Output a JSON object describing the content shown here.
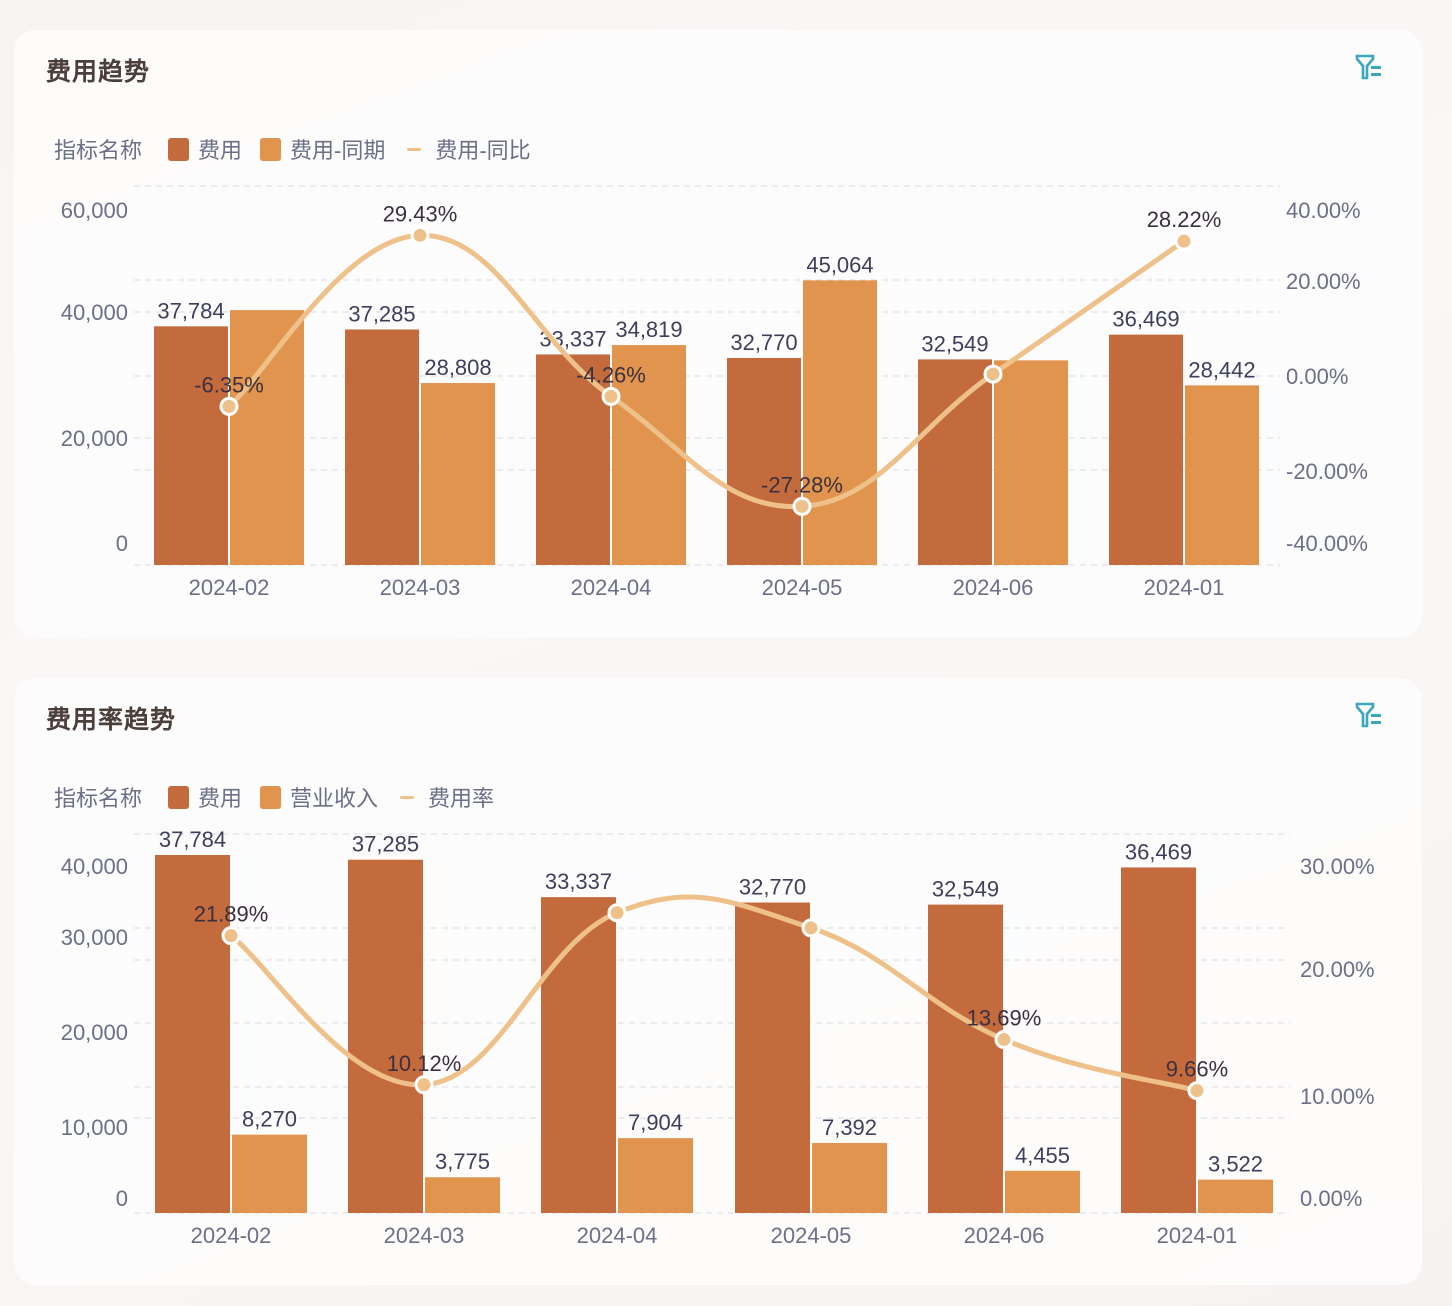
{
  "colors": {
    "expense": "#c46b3e",
    "secondary": "#e0944d",
    "line": "#eec18a",
    "filter_icon": "#3aa7bd",
    "title": "#4a3f3b",
    "axis_text": "#6b6f88",
    "grid": "#dadbe4"
  },
  "cards": [
    {
      "title": "费用趋势",
      "filter_icon": "filter-list-icon",
      "legend": {
        "title": "指标名称",
        "items": [
          {
            "label": "费用",
            "type": "bar"
          },
          {
            "label": "费用-同期",
            "type": "bar"
          },
          {
            "label": "费用-同比",
            "type": "line"
          }
        ]
      },
      "left_ticks": [
        "60,000",
        "40,000",
        "20,000",
        "0"
      ],
      "right_ticks": [
        "40.00%",
        "20.00%",
        "0.00%",
        "-20.00%",
        "-40.00%"
      ],
      "categories": [
        "2024-02",
        "2024-03",
        "2024-04",
        "2024-05",
        "2024-06",
        "2024-01"
      ]
    },
    {
      "title": "费用率趋势",
      "filter_icon": "filter-list-icon",
      "legend": {
        "title": "指标名称",
        "items": [
          {
            "label": "费用",
            "type": "bar"
          },
          {
            "label": "营业收入",
            "type": "bar"
          },
          {
            "label": "费用率",
            "type": "line"
          }
        ]
      },
      "left_ticks": [
        "40,000",
        "30,000",
        "20,000",
        "10,000",
        "0"
      ],
      "right_ticks": [
        "30.00%",
        "20.00%",
        "10.00%",
        "0.00%"
      ],
      "categories": [
        "2024-02",
        "2024-03",
        "2024-04",
        "2024-05",
        "2024-06",
        "2024-01"
      ]
    }
  ],
  "chart_data": [
    {
      "type": "bar",
      "title": "费用趋势",
      "categories": [
        "2024-02",
        "2024-03",
        "2024-04",
        "2024-05",
        "2024-06",
        "2024-01"
      ],
      "series": [
        {
          "name": "费用",
          "type": "bar",
          "axis": "left",
          "values": [
            37784,
            37285,
            33337,
            32770,
            32549,
            36469
          ],
          "labels": [
            "37,784",
            "37,285",
            "33,337",
            "32,770",
            "32,549",
            "36,469"
          ]
        },
        {
          "name": "费用-同期",
          "type": "bar",
          "axis": "left",
          "values": [
            40350,
            28808,
            34819,
            45064,
            32400,
            28442
          ],
          "labels": [
            "",
            "28,808",
            "34,819",
            "45,064",
            "",
            "28,442"
          ]
        },
        {
          "name": "费用-同比",
          "type": "line",
          "axis": "right",
          "values": [
            -6.35,
            29.43,
            -4.26,
            -27.28,
            0.4,
            28.22
          ],
          "labels": [
            "-6.35%",
            "29.43%",
            "-4.26%",
            "-27.28%",
            "",
            "28.22%"
          ]
        }
      ],
      "xlabel": "",
      "ylabel_left": "",
      "ylim_left": [
        0,
        60000
      ],
      "ylabel_right": "",
      "ylim_right": [
        -40,
        40
      ],
      "legend_position": "top-left",
      "grid": true
    },
    {
      "type": "bar",
      "title": "费用率趋势",
      "categories": [
        "2024-02",
        "2024-03",
        "2024-04",
        "2024-05",
        "2024-06",
        "2024-01"
      ],
      "series": [
        {
          "name": "费用",
          "type": "bar",
          "axis": "left",
          "values": [
            37784,
            37285,
            33337,
            32770,
            32549,
            36469
          ],
          "labels": [
            "37,784",
            "37,285",
            "33,337",
            "32,770",
            "32,549",
            "36,469"
          ]
        },
        {
          "name": "营业收入",
          "type": "bar",
          "axis": "left",
          "values": [
            8270,
            3775,
            7904,
            7392,
            4455,
            3522
          ],
          "labels": [
            "8,270",
            "3,775",
            "7,904",
            "7,392",
            "4,455",
            "3,522"
          ]
        },
        {
          "name": "费用率",
          "type": "line",
          "axis": "right",
          "values": [
            21.89,
            10.12,
            23.7,
            22.5,
            13.69,
            9.66
          ],
          "labels": [
            "21.89%",
            "10.12%",
            "",
            "",
            "13.69%",
            "9.66%"
          ]
        }
      ],
      "xlabel": "",
      "ylabel_left": "",
      "ylim_left": [
        0,
        40000
      ],
      "ylabel_right": "",
      "ylim_right": [
        0,
        30
      ],
      "legend_position": "top-left",
      "grid": true
    }
  ]
}
